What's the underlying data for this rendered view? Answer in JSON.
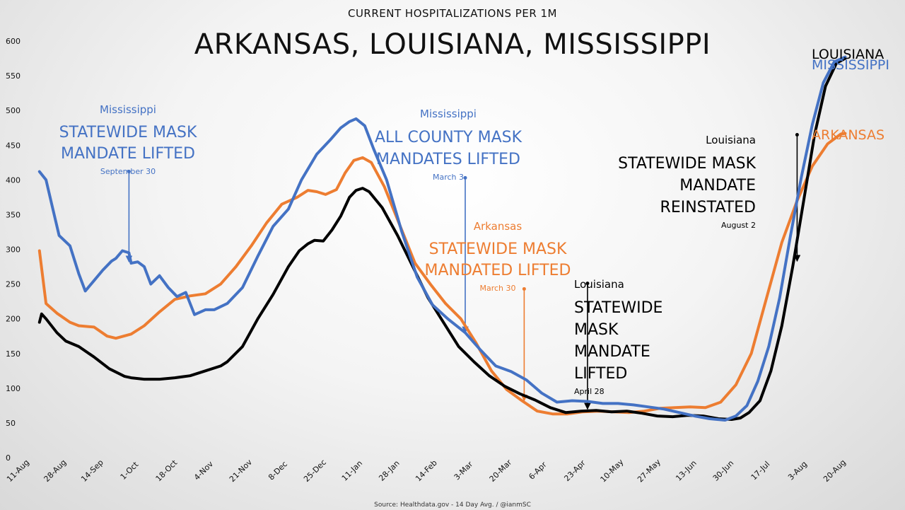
{
  "colors": {
    "louisiana": "#000000",
    "mississippi": "#4472c4",
    "arkansas": "#ed7d31"
  },
  "chart_data": {
    "type": "line",
    "title": "ARKANSAS, LOUISIANA, MISSISSIPPI",
    "subtitle": "CURRENT HOSPITALIZATIONS PER 1M",
    "source": "Source: Healthdata.gov - 14 Day Avg. / @ianmSC",
    "ylim": [
      0,
      600
    ],
    "yticks": [
      0,
      50,
      100,
      150,
      200,
      250,
      300,
      350,
      400,
      450,
      500,
      550,
      600
    ],
    "x_ticks": [
      "11-Aug",
      "28-Aug",
      "14-Sep",
      "1-Oct",
      "18-Oct",
      "4-Nov",
      "21-Nov",
      "8-Dec",
      "25-Dec",
      "11-Jan",
      "28-Jan",
      "14-Feb",
      "3-Mar",
      "20-Mar",
      "6-Apr",
      "23-Apr",
      "10-May",
      "27-May",
      "13-Jun",
      "30-Jun",
      "17-Jul",
      "3-Aug",
      "20-Aug"
    ],
    "grid": false,
    "legend": "end-of-line labels",
    "series": [
      {
        "name": "LOUISIANA",
        "color": "#000000",
        "points": [
          [
            "2020-08-20",
            195
          ],
          [
            "2020-08-21",
            207
          ],
          [
            "2020-08-23",
            200
          ],
          [
            "2020-08-28",
            180
          ],
          [
            "2020-09-01",
            168
          ],
          [
            "2020-09-07",
            160
          ],
          [
            "2020-09-14",
            145
          ],
          [
            "2020-09-21",
            128
          ],
          [
            "2020-09-28",
            117
          ],
          [
            "2020-10-01",
            115
          ],
          [
            "2020-10-07",
            113
          ],
          [
            "2020-10-14",
            113
          ],
          [
            "2020-10-21",
            115
          ],
          [
            "2020-10-28",
            118
          ],
          [
            "2020-11-04",
            125
          ],
          [
            "2020-11-11",
            132
          ],
          [
            "2020-11-14",
            138
          ],
          [
            "2020-11-21",
            160
          ],
          [
            "2020-11-28",
            200
          ],
          [
            "2020-12-05",
            235
          ],
          [
            "2020-12-12",
            275
          ],
          [
            "2020-12-17",
            298
          ],
          [
            "2020-12-21",
            308
          ],
          [
            "2020-12-24",
            313
          ],
          [
            "2020-12-28",
            312
          ],
          [
            "2021-01-01",
            328
          ],
          [
            "2021-01-05",
            348
          ],
          [
            "2021-01-09",
            375
          ],
          [
            "2021-01-12",
            385
          ],
          [
            "2021-01-15",
            388
          ],
          [
            "2021-01-18",
            383
          ],
          [
            "2021-01-24",
            360
          ],
          [
            "2021-01-31",
            320
          ],
          [
            "2021-02-07",
            275
          ],
          [
            "2021-02-14",
            230
          ],
          [
            "2021-02-21",
            195
          ],
          [
            "2021-02-28",
            160
          ],
          [
            "2021-03-07",
            138
          ],
          [
            "2021-03-14",
            118
          ],
          [
            "2021-03-21",
            103
          ],
          [
            "2021-03-28",
            92
          ],
          [
            "2021-04-04",
            83
          ],
          [
            "2021-04-11",
            72
          ],
          [
            "2021-04-18",
            65
          ],
          [
            "2021-04-25",
            67
          ],
          [
            "2021-05-02",
            68
          ],
          [
            "2021-05-09",
            66
          ],
          [
            "2021-05-16",
            67
          ],
          [
            "2021-05-23",
            64
          ],
          [
            "2021-05-30",
            60
          ],
          [
            "2021-06-06",
            59
          ],
          [
            "2021-06-13",
            61
          ],
          [
            "2021-06-20",
            60
          ],
          [
            "2021-06-27",
            56
          ],
          [
            "2021-07-03",
            55
          ],
          [
            "2021-07-07",
            57
          ],
          [
            "2021-07-11",
            65
          ],
          [
            "2021-07-16",
            82
          ],
          [
            "2021-07-21",
            125
          ],
          [
            "2021-07-26",
            190
          ],
          [
            "2021-07-31",
            275
          ],
          [
            "2021-08-05",
            370
          ],
          [
            "2021-08-10",
            465
          ],
          [
            "2021-08-15",
            535
          ],
          [
            "2021-08-20",
            568
          ],
          [
            "2021-08-24",
            575
          ]
        ]
      },
      {
        "name": "MISSISSIPPI",
        "color": "#4472c4",
        "points": [
          [
            "2020-08-20",
            412
          ],
          [
            "2020-08-23",
            400
          ],
          [
            "2020-08-26",
            360
          ],
          [
            "2020-08-29",
            320
          ],
          [
            "2020-09-03",
            305
          ],
          [
            "2020-09-07",
            265
          ],
          [
            "2020-09-10",
            240
          ],
          [
            "2020-09-14",
            255
          ],
          [
            "2020-09-18",
            270
          ],
          [
            "2020-09-22",
            283
          ],
          [
            "2020-09-24",
            287
          ],
          [
            "2020-09-27",
            298
          ],
          [
            "2020-09-30",
            295
          ],
          [
            "2020-10-01",
            280
          ],
          [
            "2020-10-04",
            282
          ],
          [
            "2020-10-07",
            275
          ],
          [
            "2020-10-10",
            250
          ],
          [
            "2020-10-14",
            262
          ],
          [
            "2020-10-18",
            245
          ],
          [
            "2020-10-22",
            232
          ],
          [
            "2020-10-26",
            238
          ],
          [
            "2020-10-30",
            206
          ],
          [
            "2020-11-04",
            213
          ],
          [
            "2020-11-08",
            213
          ],
          [
            "2020-11-14",
            222
          ],
          [
            "2020-11-21",
            245
          ],
          [
            "2020-11-28",
            290
          ],
          [
            "2020-12-05",
            333
          ],
          [
            "2020-12-12",
            358
          ],
          [
            "2020-12-18",
            400
          ],
          [
            "2020-12-25",
            437
          ],
          [
            "2020-12-31",
            457
          ],
          [
            "2021-01-05",
            475
          ],
          [
            "2021-01-09",
            484
          ],
          [
            "2021-01-12",
            488
          ],
          [
            "2021-01-16",
            478
          ],
          [
            "2021-01-20",
            445
          ],
          [
            "2021-01-26",
            400
          ],
          [
            "2021-02-02",
            325
          ],
          [
            "2021-02-09",
            260
          ],
          [
            "2021-02-16",
            220
          ],
          [
            "2021-02-23",
            200
          ],
          [
            "2021-03-03",
            180
          ],
          [
            "2021-03-10",
            155
          ],
          [
            "2021-03-17",
            132
          ],
          [
            "2021-03-24",
            124
          ],
          [
            "2021-03-31",
            112
          ],
          [
            "2021-04-07",
            93
          ],
          [
            "2021-04-14",
            80
          ],
          [
            "2021-04-21",
            82
          ],
          [
            "2021-04-28",
            81
          ],
          [
            "2021-05-05",
            78
          ],
          [
            "2021-05-12",
            78
          ],
          [
            "2021-05-19",
            76
          ],
          [
            "2021-05-26",
            73
          ],
          [
            "2021-06-02",
            70
          ],
          [
            "2021-06-09",
            65
          ],
          [
            "2021-06-16",
            60
          ],
          [
            "2021-06-23",
            56
          ],
          [
            "2021-06-30",
            54
          ],
          [
            "2021-07-05",
            60
          ],
          [
            "2021-07-10",
            75
          ],
          [
            "2021-07-15",
            110
          ],
          [
            "2021-07-20",
            160
          ],
          [
            "2021-07-25",
            230
          ],
          [
            "2021-07-30",
            320
          ],
          [
            "2021-08-04",
            405
          ],
          [
            "2021-08-09",
            480
          ],
          [
            "2021-08-14",
            540
          ],
          [
            "2021-08-19",
            570
          ],
          [
            "2021-08-24",
            577
          ]
        ]
      },
      {
        "name": "ARKANSAS",
        "color": "#ed7d31",
        "points": [
          [
            "2020-08-20",
            298
          ],
          [
            "2020-08-23",
            222
          ],
          [
            "2020-08-28",
            208
          ],
          [
            "2020-09-03",
            195
          ],
          [
            "2020-09-07",
            190
          ],
          [
            "2020-09-14",
            188
          ],
          [
            "2020-09-20",
            175
          ],
          [
            "2020-09-24",
            172
          ],
          [
            "2020-10-01",
            178
          ],
          [
            "2020-10-07",
            190
          ],
          [
            "2020-10-14",
            210
          ],
          [
            "2020-10-21",
            228
          ],
          [
            "2020-10-28",
            233
          ],
          [
            "2020-11-04",
            236
          ],
          [
            "2020-11-11",
            250
          ],
          [
            "2020-11-18",
            275
          ],
          [
            "2020-11-25",
            305
          ],
          [
            "2020-12-02",
            338
          ],
          [
            "2020-12-09",
            365
          ],
          [
            "2020-12-16",
            375
          ],
          [
            "2020-12-21",
            385
          ],
          [
            "2020-12-25",
            383
          ],
          [
            "2020-12-29",
            379
          ],
          [
            "2021-01-03",
            386
          ],
          [
            "2021-01-07",
            410
          ],
          [
            "2021-01-11",
            428
          ],
          [
            "2021-01-15",
            432
          ],
          [
            "2021-01-19",
            425
          ],
          [
            "2021-01-25",
            390
          ],
          [
            "2021-02-01",
            335
          ],
          [
            "2021-02-08",
            280
          ],
          [
            "2021-02-15",
            250
          ],
          [
            "2021-02-22",
            222
          ],
          [
            "2021-03-01",
            200
          ],
          [
            "2021-03-08",
            165
          ],
          [
            "2021-03-15",
            125
          ],
          [
            "2021-03-22",
            98
          ],
          [
            "2021-03-29",
            82
          ],
          [
            "2021-04-05",
            67
          ],
          [
            "2021-04-12",
            63
          ],
          [
            "2021-04-19",
            63
          ],
          [
            "2021-04-26",
            66
          ],
          [
            "2021-05-03",
            67
          ],
          [
            "2021-05-10",
            66
          ],
          [
            "2021-05-17",
            65
          ],
          [
            "2021-05-24",
            67
          ],
          [
            "2021-05-31",
            71
          ],
          [
            "2021-06-07",
            72
          ],
          [
            "2021-06-14",
            73
          ],
          [
            "2021-06-21",
            72
          ],
          [
            "2021-06-28",
            80
          ],
          [
            "2021-07-05",
            105
          ],
          [
            "2021-07-12",
            150
          ],
          [
            "2021-07-19",
            230
          ],
          [
            "2021-07-26",
            310
          ],
          [
            "2021-08-02",
            370
          ],
          [
            "2021-08-09",
            420
          ],
          [
            "2021-08-16",
            452
          ],
          [
            "2021-08-22",
            466
          ],
          [
            "2021-08-24",
            467
          ]
        ]
      }
    ],
    "annotations": [
      {
        "state": "Mississippi",
        "text_lines": [
          "STATEWIDE MASK",
          "MANDATE LIFTED"
        ],
        "date_label": "September 30",
        "date": "2020-09-30",
        "color": "#4472c4",
        "arrow_from_y": 412,
        "arrow_to_y": 282
      },
      {
        "state": "Mississippi",
        "text_lines": [
          "ALL COUNTY MASK",
          "MANDATES LIFTED"
        ],
        "date_label": "March 3",
        "date": "2021-03-03",
        "color": "#4472c4",
        "arrow_from_y": 403,
        "arrow_to_y": 180
      },
      {
        "state": "Arkansas",
        "text_lines": [
          "STATEWIDE MASK",
          "MANDATED LIFTED"
        ],
        "date_label": "March 30",
        "date": "2021-03-30",
        "color": "#ed7d31",
        "arrow_from_y": 243,
        "arrow_to_y": 82
      },
      {
        "state": "Louisiana",
        "text_lines": [
          "STATEWIDE",
          "MASK",
          "MANDATE",
          "LIFTED"
        ],
        "date_label": "April 28",
        "date": "2021-04-28",
        "color": "#000000",
        "arrow_from_y": 251,
        "arrow_to_y": 70
      },
      {
        "state": "Louisiana",
        "text_lines": [
          "STATEWIDE MASK",
          "MANDATE",
          "REINSTATED"
        ],
        "date_label": "August 2",
        "date": "2021-08-02",
        "color": "#000000",
        "arrow_from_y": 465,
        "arrow_to_y": 283
      }
    ]
  }
}
